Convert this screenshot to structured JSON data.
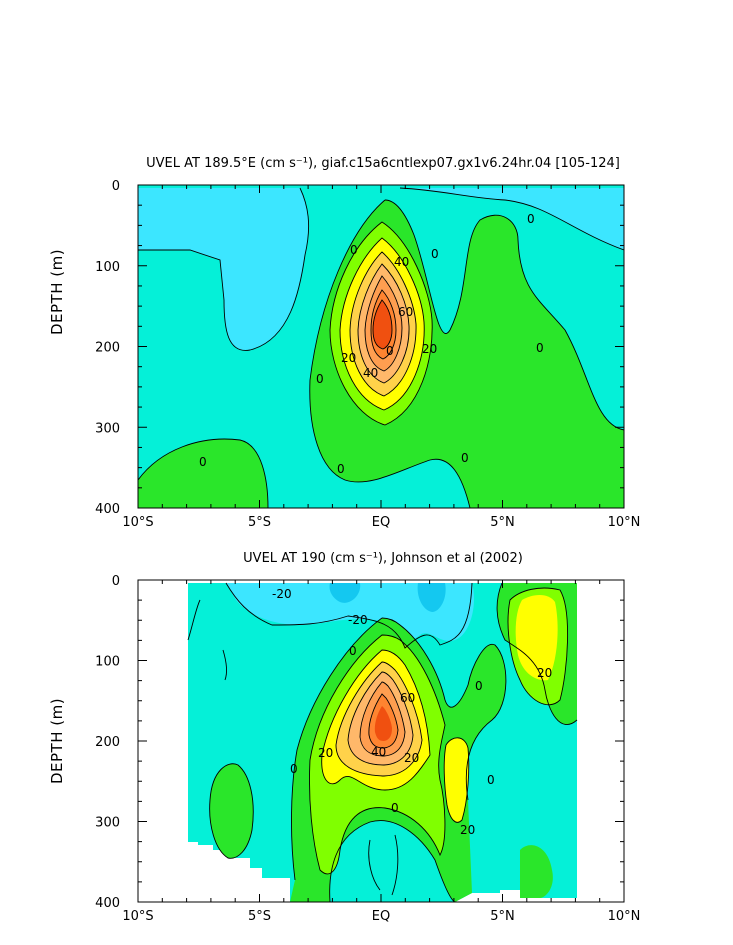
{
  "chart_data": [
    {
      "type": "heatmap",
      "title": "UVEL AT 189.5°E (cm s⁻¹), giaf.c15a6cntlexp07.gx1v6.24hr.04 [105-124]",
      "ylabel": "DEPTH (m)",
      "xlabel": "",
      "xticks": [
        "10°S",
        "5°S",
        "EQ",
        "5°N",
        "10°N"
      ],
      "x": [
        -10,
        10
      ],
      "yticks": [
        "0",
        "100",
        "200",
        "300",
        "400"
      ],
      "ylim": [
        0,
        400
      ],
      "y_inverted": true,
      "contour_labels": [
        "0",
        "0",
        "0",
        "0",
        "0",
        "0",
        "0",
        "0",
        "0",
        "20",
        "20",
        "40",
        "40",
        "60"
      ],
      "core": {
        "lat": 0.0,
        "depth": 155,
        "max_speed": 80
      },
      "contour_interval": 10
    },
    {
      "type": "heatmap",
      "title": "UVEL AT 190 (cm s⁻¹), Johnson et al (2002)",
      "ylabel": "DEPTH (m)",
      "xlabel": "",
      "xticks": [
        "10°S",
        "5°S",
        "EQ",
        "5°N",
        "10°N"
      ],
      "x": [
        -10,
        10
      ],
      "yticks": [
        "0",
        "100",
        "200",
        "300",
        "400"
      ],
      "ylim": [
        0,
        400
      ],
      "y_inverted": true,
      "data_extent": {
        "lat": [
          -8,
          8
        ]
      },
      "contour_labels": [
        "-20",
        "-20",
        "0",
        "0",
        "0",
        "0",
        "0",
        "20",
        "20",
        "20",
        "20",
        "40",
        "60"
      ],
      "core": {
        "lat": 0.0,
        "depth": 150,
        "max_speed": 90
      },
      "contour_interval": 10
    }
  ],
  "colors": {
    "le_minus20": "#14c8f0",
    "minus20_minus10": "#3ce6ff",
    "minus10_0": "#05f0d8",
    "0_10": "#2ae62a",
    "10_20": "#80ff00",
    "20_30": "#ffff00",
    "30_40": "#ffd24a",
    "40_50": "#ffb86a",
    "50_60": "#ff9e50",
    "60_70": "#ff8430",
    "ge_70": "#f05010",
    "missing": "#ffffff"
  }
}
